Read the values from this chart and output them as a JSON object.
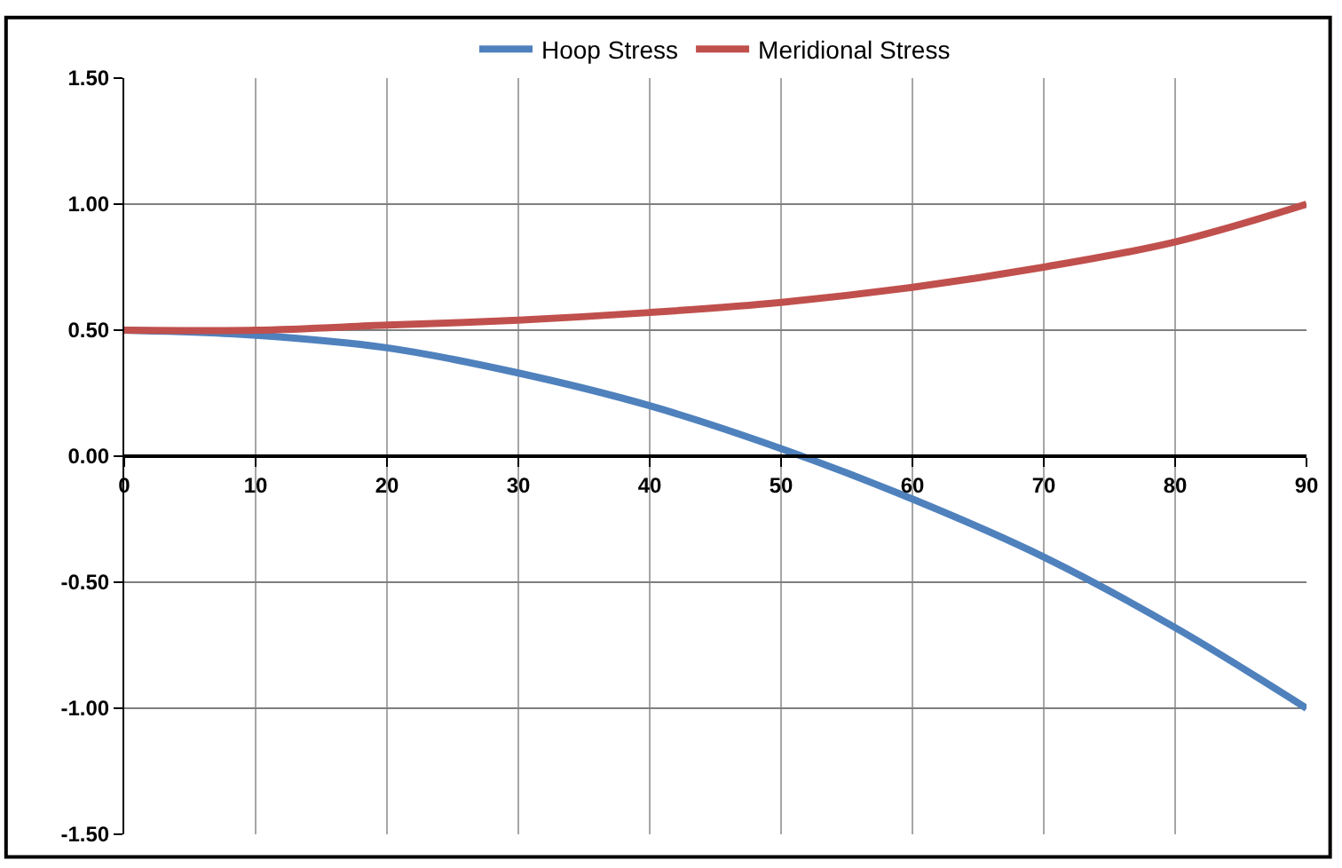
{
  "chart_data": {
    "type": "line",
    "x": [
      0,
      10,
      20,
      30,
      40,
      50,
      60,
      70,
      80,
      90
    ],
    "series": [
      {
        "name": "Hoop Stress",
        "color": "#4f81bd",
        "values": [
          0.5,
          0.48,
          0.43,
          0.33,
          0.2,
          0.03,
          -0.17,
          -0.4,
          -0.68,
          -1.0
        ]
      },
      {
        "name": "Meridional Stress",
        "color": "#c0504d",
        "values": [
          0.5,
          0.5,
          0.52,
          0.54,
          0.57,
          0.61,
          0.67,
          0.75,
          0.85,
          1.0
        ]
      }
    ],
    "xlim": [
      0,
      90
    ],
    "xticks": [
      0,
      10,
      20,
      30,
      40,
      50,
      60,
      70,
      80,
      90
    ],
    "ylim": [
      -1.5,
      1.5
    ],
    "yticks": [
      {
        "value": -1.5,
        "label": "-1.50"
      },
      {
        "value": -1.0,
        "label": "-1.00"
      },
      {
        "value": -0.5,
        "label": "-0.50"
      },
      {
        "value": 0,
        "label": "0.00"
      },
      {
        "value": 0.5,
        "label": "0.50"
      },
      {
        "value": 1.0,
        "label": "1.00"
      },
      {
        "value": 1.5,
        "label": "1.50"
      }
    ],
    "grid": true,
    "legend": "top",
    "marker": "none",
    "line_style": "solid"
  }
}
